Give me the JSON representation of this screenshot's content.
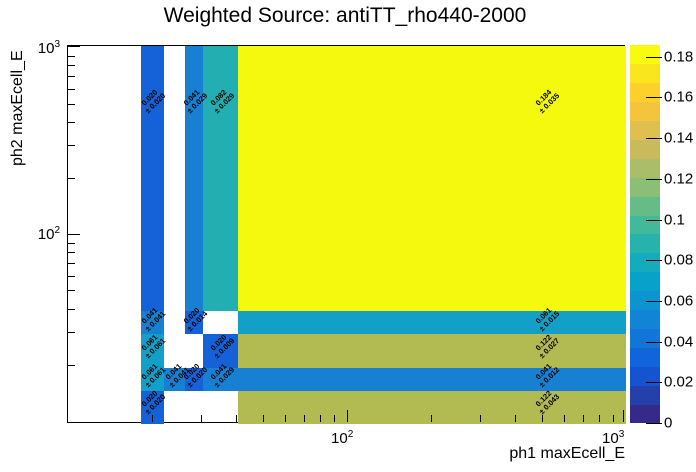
{
  "title": "Weighted Source: antiTT_rho440-2000",
  "axes": {
    "x": {
      "label": "ph1 maxEcell_E",
      "scale": "log",
      "ticks": [
        {
          "base": "10",
          "exp": "2"
        },
        {
          "base": "10",
          "exp": "3"
        }
      ]
    },
    "y": {
      "label": "ph2 maxEcell_E",
      "scale": "log",
      "ticks": [
        {
          "base": "10",
          "exp": "3"
        },
        {
          "base": "10",
          "exp": "2"
        }
      ]
    }
  },
  "colorbar": {
    "min": 0,
    "max": 0.186,
    "tick_labels": [
      "0",
      "0.02",
      "0.04",
      "0.06",
      "0.08",
      "0.1",
      "0.12",
      "0.14",
      "0.16",
      "0.18"
    ],
    "palette": [
      "#352A87",
      "#253FAB",
      "#1554D0",
      "#1065DB",
      "#1275D8",
      "#1284D5",
      "#0D93D0",
      "#07A2CA",
      "#15ABBC",
      "#26B3AC",
      "#41B99A",
      "#66BC87",
      "#8BBF75",
      "#AABD69",
      "#C9BB5C",
      "#DFBF4D",
      "#F2C53C",
      "#FDD02C",
      "#FBE61D",
      "#F9FB0E"
    ]
  },
  "chart_data": {
    "type": "heatmap",
    "title": "Weighted Source: antiTT_rho440-2000",
    "xlabel": "ph1 maxEcell_E",
    "ylabel": "ph2 maxEcell_E",
    "x_scale": "log",
    "y_scale": "log",
    "x_range": [
      10,
      1000
    ],
    "y_range": [
      10,
      1000
    ],
    "x_bin_edges_approx": [
      18,
      22,
      26,
      30,
      40,
      1000
    ],
    "y_bin_edges_approx": [
      10,
      15,
      20,
      30,
      40,
      1000
    ],
    "grid": "off",
    "legend_position": "right-colorbar",
    "value_colors": {
      "0.020": "#1562d8",
      "0.041": "#1880d2",
      "0.061": "#12a0c9",
      "0.082": "#23aeb1",
      "0.122": "#b2ba52",
      "0.184": "#f5f90e"
    },
    "cells": [
      {
        "row": 0,
        "col": 0,
        "value": 0.02,
        "error": 0.02,
        "label": [
          "0.020",
          "± 0.020"
        ],
        "color": "#1562d8"
      },
      {
        "row": 0,
        "col": 2,
        "value": 0.041,
        "error": 0.029,
        "label": [
          "0.041",
          "± 0.029"
        ],
        "color": "#1880d2"
      },
      {
        "row": 0,
        "col": 3,
        "value": 0.082,
        "error": 0.029,
        "label": [
          "0.082",
          "± 0.029"
        ],
        "color": "#23aeb1"
      },
      {
        "row": 0,
        "col": 4,
        "value": 0.184,
        "error": 0.035,
        "label": [
          "0.184",
          "± 0.035"
        ],
        "color": "#f5f90e"
      },
      {
        "row": 1,
        "col": 0,
        "value": 0.041,
        "error": 0.041,
        "label": [
          "0.041",
          "± 0.041"
        ],
        "color": "#1880d2"
      },
      {
        "row": 1,
        "col": 2,
        "value": 0.02,
        "error": 0.014,
        "label": [
          "0.020",
          "± 0.014"
        ],
        "color": "#1562d8"
      },
      {
        "row": 1,
        "col": 4,
        "value": 0.061,
        "error": 0.015,
        "label": [
          "0.061",
          "± 0.015"
        ],
        "color": "#12a0c9"
      },
      {
        "row": 2,
        "col": 0,
        "value": 0.061,
        "error": 0.061,
        "label": [
          "0.061",
          "± 0.061"
        ],
        "color": "#12a0c9"
      },
      {
        "row": 2,
        "col": 3,
        "value": 0.02,
        "error": 0.009,
        "label": [
          "0.020",
          "± 0.009"
        ],
        "color": "#1562d8"
      },
      {
        "row": 2,
        "col": 4,
        "value": 0.122,
        "error": 0.027,
        "label": [
          "0.122",
          "± 0.027"
        ],
        "color": "#b2ba52"
      },
      {
        "row": 3,
        "col": 0,
        "value": 0.061,
        "error": 0.061,
        "label": [
          "0.061",
          "± 0.061"
        ],
        "color": "#12a0c9"
      },
      {
        "row": 3,
        "col": 1,
        "value": 0.041,
        "error": 0.041,
        "label": [
          "0.041",
          "± 0.041"
        ],
        "color": "#1880d2"
      },
      {
        "row": 3,
        "col": 2,
        "value": 0.02,
        "error": 0.02,
        "label": [
          "0.020",
          "± 0.020"
        ],
        "color": "#1562d8"
      },
      {
        "row": 3,
        "col": 3,
        "value": 0.041,
        "error": 0.029,
        "label": [
          "0.041",
          "± 0.029"
        ],
        "color": "#1880d2"
      },
      {
        "row": 3,
        "col": 4,
        "value": 0.041,
        "error": 0.012,
        "label": [
          "0.041",
          "± 0.012"
        ],
        "color": "#1880d2"
      },
      {
        "row": 4,
        "col": 0,
        "value": 0.02,
        "error": 0.02,
        "label": [
          "0.020",
          "± 0.020"
        ],
        "color": "#1562d8"
      },
      {
        "row": 4,
        "col": 4,
        "value": 0.122,
        "error": 0.043,
        "label": [
          "0.122",
          "± 0.043"
        ],
        "color": "#b2ba52"
      }
    ]
  }
}
